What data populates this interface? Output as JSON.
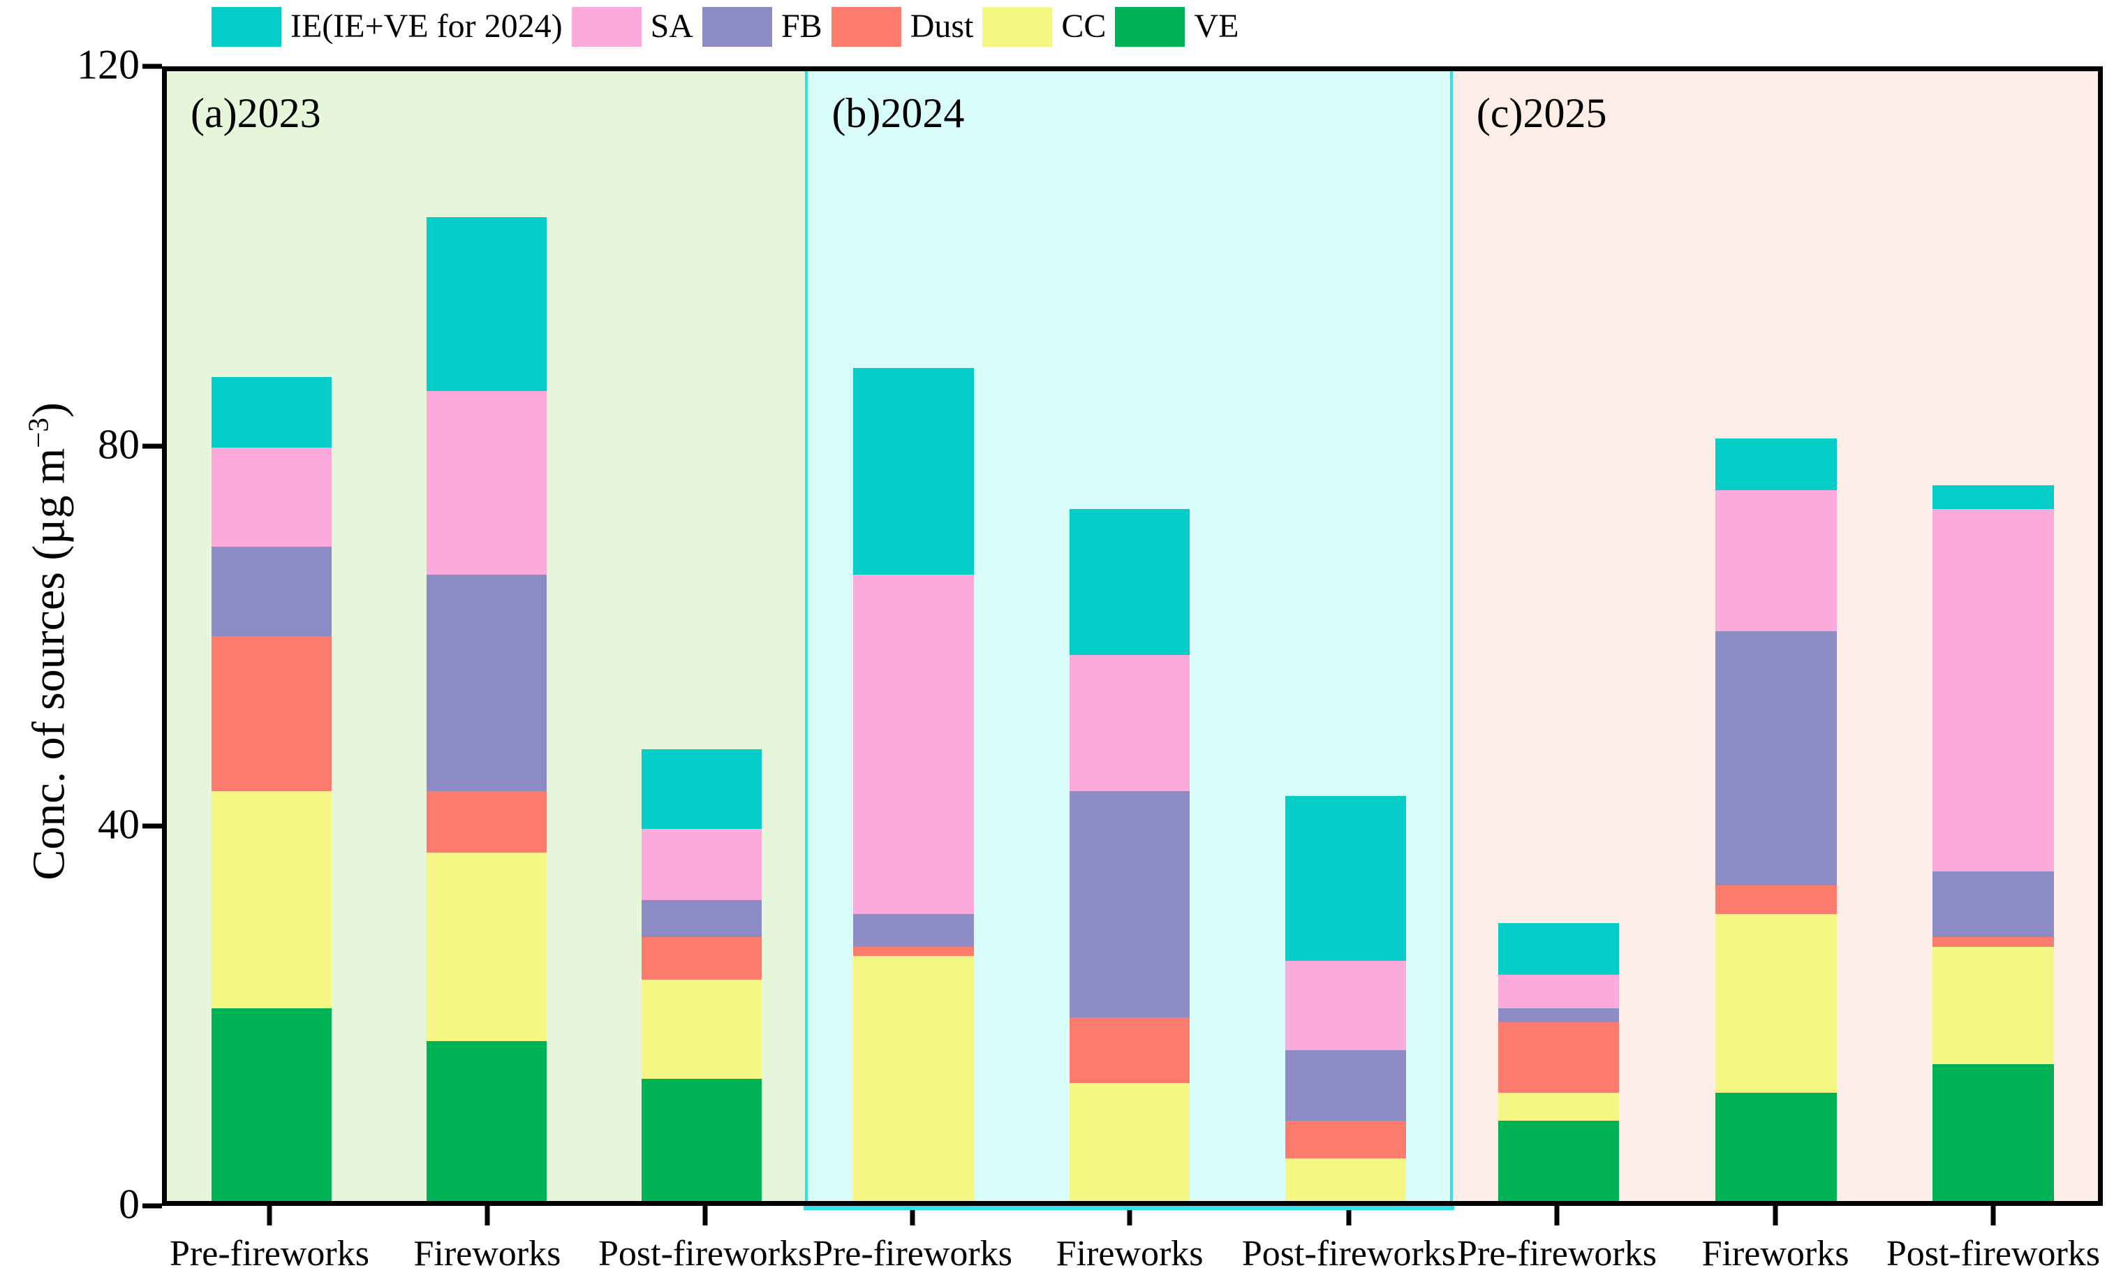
{
  "legend": {
    "items": [
      {
        "key": "IE",
        "label": "IE(IE+VE for 2024)",
        "color": "#04cdc8"
      },
      {
        "key": "SA",
        "label": "SA",
        "color": "#fcaadc"
      },
      {
        "key": "FB",
        "label": "FB",
        "color": "#8d8bc4"
      },
      {
        "key": "Dust",
        "label": "Dust",
        "color": "#fb7c6c"
      },
      {
        "key": "CC",
        "label": "CC",
        "color": "#f6f685"
      },
      {
        "key": "VE",
        "label": "VE",
        "color": "#00b256"
      }
    ]
  },
  "y_axis": {
    "title_prefix": "Conc. of sources (µg m",
    "title_sup": "−3",
    "title_suffix": ")",
    "ticks": [
      "0",
      "40",
      "80",
      "120"
    ],
    "tick_values": [
      0,
      40,
      80,
      120
    ],
    "min": 0,
    "max": 120
  },
  "x_axis": {
    "tick_labels": [
      "Pre-fireworks",
      "Fireworks",
      "Post-fireworks"
    ]
  },
  "panels": [
    {
      "label": "(a)2023",
      "group": "2023",
      "bg": "#e5f6da"
    },
    {
      "label": "(b)2024",
      "group": "2024",
      "bg": "#d8fcfa",
      "border_color": "#35dfe8"
    },
    {
      "label": "(c)2025",
      "group": "2025",
      "bg": "#fceee6"
    }
  ],
  "chart_data": {
    "type": "bar",
    "stacked": true,
    "title": "",
    "xlabel": "",
    "ylabel": "Conc. of sources (µg m−3)",
    "ylim": [
      0,
      120
    ],
    "grid": false,
    "legend_position": "top-left",
    "groups": [
      "2023",
      "2024",
      "2025"
    ],
    "categories": [
      "Pre-fireworks",
      "Fireworks",
      "Post-fireworks"
    ],
    "stack_order_bottom_to_top": [
      "VE",
      "CC",
      "Dust",
      "FB",
      "SA",
      "IE"
    ],
    "note": "VE is zero for all 2024 bars because IE includes VE in 2024 (legend: IE(IE+VE for 2024)). Units: µg m-3, values estimated from axis.",
    "series": [
      {
        "key": "IE",
        "name": "IE(IE+VE for 2024)",
        "color": "#04cdc8",
        "values": {
          "2023": [
            7.5,
            18.5,
            8.5
          ],
          "2024": [
            22,
            15.5,
            17.5
          ],
          "2025": [
            5.5,
            5.5,
            2.5
          ]
        }
      },
      {
        "key": "SA",
        "name": "SA",
        "color": "#fcaadc",
        "values": {
          "2023": [
            10.5,
            19.5,
            7.5
          ],
          "2024": [
            36,
            14.5,
            9.5
          ],
          "2025": [
            3.5,
            15,
            38.5
          ]
        }
      },
      {
        "key": "FB",
        "name": "FB",
        "color": "#8d8bc4",
        "values": {
          "2023": [
            9.5,
            23,
            4
          ],
          "2024": [
            3.5,
            24,
            7.5
          ],
          "2025": [
            1.5,
            27,
            7
          ]
        }
      },
      {
        "key": "Dust",
        "name": "Dust",
        "color": "#fb7c6c",
        "values": {
          "2023": [
            16.5,
            6.5,
            4.5
          ],
          "2024": [
            1,
            7,
            4
          ],
          "2025": [
            7.5,
            3,
            1
          ]
        }
      },
      {
        "key": "CC",
        "name": "CC",
        "color": "#f6f685",
        "values": {
          "2023": [
            23,
            20,
            10.5
          ],
          "2024": [
            26,
            12.5,
            4.5
          ],
          "2025": [
            3,
            19,
            12.5
          ]
        }
      },
      {
        "key": "VE",
        "name": "VE",
        "color": "#00b256",
        "values": {
          "2023": [
            20.5,
            17,
            13
          ],
          "2024": [
            0,
            0,
            0
          ],
          "2025": [
            8.5,
            11.5,
            14.5
          ]
        }
      }
    ],
    "totals": {
      "2023": [
        87.5,
        104.5,
        48
      ],
      "2024": [
        88.5,
        73.5,
        43
      ],
      "2025": [
        29.5,
        81,
        76
      ]
    }
  }
}
